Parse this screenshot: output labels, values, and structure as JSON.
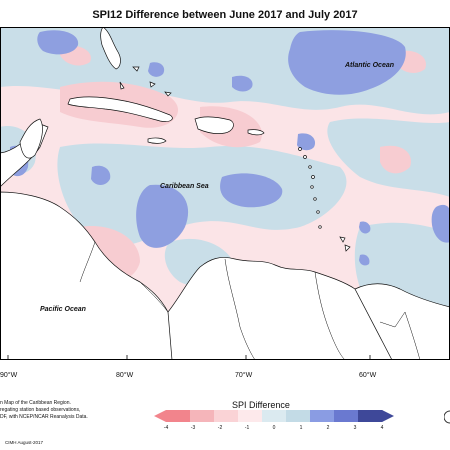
{
  "title": "SPI12 Difference between June 2017 and July 2017",
  "ocean_labels": {
    "atlantic": "Atlantic Ocean",
    "caribbean": "Caribbean Sea",
    "pacific": "Pacific Ocean"
  },
  "longitude_labels": [
    "90°W",
    "80°W",
    "70°W",
    "60°W"
  ],
  "source_note": {
    "line1": "n Map of the Caribbean Region.",
    "line2": "regating station based observations,",
    "line3": "DF, with NCEP/NCAR Reanalysis Data."
  },
  "credit": "CIMH August-2017",
  "legend": {
    "title": "SPI Difference",
    "ticks": [
      "-4",
      "-3",
      "-2",
      "-1",
      "0",
      "1",
      "2",
      "3",
      "4"
    ],
    "colors": [
      "#f2848c",
      "#f5b5ba",
      "#fad3d6",
      "#fde9eb",
      "#dbeaf0",
      "#c3dbe6",
      "#8a9ce3",
      "#6a79d0",
      "#3e4899"
    ]
  },
  "colors": {
    "strong_blue": "#8a9ce3",
    "light_blue": "#c8dde8",
    "light_pink": "#fbe2e6",
    "pink": "#f6c6cb"
  }
}
